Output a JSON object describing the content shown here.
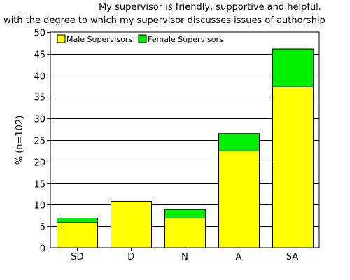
{
  "colors": {
    "male": "#ffff00",
    "female": "#00ee00",
    "axis": "#000000",
    "grid": "#000000"
  },
  "chart_data": {
    "type": "bar",
    "stacked": true,
    "title_line1": "My supervisor is friendly, supportive and helpful.",
    "title_line2": "with the degree to which my supervisor discusses issues of authorship",
    "xlabel": "",
    "ylabel": "% (n=102)",
    "categories": [
      "SD",
      "D",
      "N",
      "A",
      "SA"
    ],
    "series": [
      {
        "name": "Male Supervisors",
        "color_key": "male",
        "values": [
          5.9,
          10.8,
          6.9,
          22.5,
          37.3
        ]
      },
      {
        "name": "Female Supervisors",
        "color_key": "female",
        "values": [
          1.0,
          0,
          2.0,
          4.0,
          8.8
        ]
      }
    ],
    "ylim": [
      0,
      50
    ],
    "yticks": [
      0,
      5,
      10,
      15,
      20,
      25,
      30,
      35,
      40,
      45,
      50
    ],
    "grid": true,
    "legend_position": "top-left"
  }
}
